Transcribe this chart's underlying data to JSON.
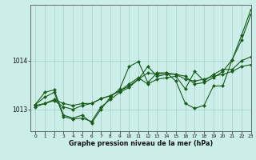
{
  "background_color": "#cceee8",
  "grid_color": "#aad4ce",
  "line_color": "#1a5c1a",
  "marker_color": "#1a5c1a",
  "xlabel": "Graphe pression niveau de la mer (hPa)",
  "xlim": [
    -0.5,
    23
  ],
  "ylim": [
    1012.55,
    1015.15
  ],
  "yticks": [
    1013,
    1014
  ],
  "hours": [
    0,
    1,
    2,
    3,
    4,
    5,
    6,
    7,
    8,
    9,
    10,
    11,
    12,
    13,
    14,
    15,
    16,
    17,
    18,
    19,
    20,
    21,
    22,
    23
  ],
  "series": [
    [
      1013.1,
      1013.35,
      1013.4,
      1012.88,
      1012.82,
      1012.88,
      1012.72,
      1013.0,
      1013.25,
      1013.42,
      1013.88,
      1013.98,
      1013.55,
      1013.75,
      1013.75,
      1013.58,
      1013.12,
      1013.02,
      1013.08,
      1013.48,
      1013.48,
      1014.02,
      1014.52,
      1015.05
    ],
    [
      1013.1,
      1013.25,
      1013.35,
      1012.85,
      1012.8,
      1012.82,
      1012.75,
      1013.05,
      1013.2,
      1013.35,
      1013.45,
      1013.62,
      1013.88,
      1013.68,
      1013.72,
      1013.72,
      1013.68,
      1013.52,
      1013.55,
      1013.65,
      1013.78,
      1014.02,
      1014.42,
      1014.95
    ],
    [
      1013.05,
      1013.12,
      1013.18,
      1013.05,
      1013.0,
      1013.08,
      1013.12,
      1013.22,
      1013.28,
      1013.38,
      1013.52,
      1013.65,
      1013.52,
      1013.62,
      1013.65,
      1013.68,
      1013.42,
      1013.78,
      1013.58,
      1013.72,
      1013.82,
      1013.82,
      1014.0,
      1014.08
    ],
    [
      1013.08,
      1013.12,
      1013.2,
      1013.12,
      1013.08,
      1013.12,
      1013.12,
      1013.22,
      1013.28,
      1013.38,
      1013.48,
      1013.62,
      1013.75,
      1013.72,
      1013.75,
      1013.72,
      1013.62,
      1013.58,
      1013.62,
      1013.68,
      1013.72,
      1013.78,
      1013.88,
      1013.92
    ]
  ]
}
